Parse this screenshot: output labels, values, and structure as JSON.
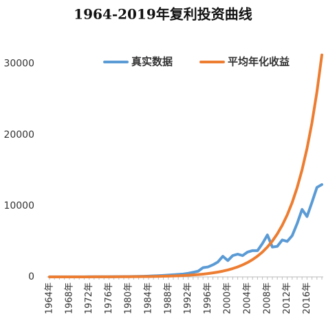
{
  "chart_data": {
    "type": "line",
    "title": "1964-2019年复利投资曲线",
    "categories": [
      "1964年",
      null,
      null,
      null,
      "1968年",
      null,
      null,
      null,
      "1972年",
      null,
      null,
      null,
      "1976年",
      null,
      null,
      null,
      "1980年",
      null,
      null,
      null,
      "1984年",
      null,
      null,
      null,
      "1988年",
      null,
      null,
      null,
      "1992年",
      null,
      null,
      null,
      "1996年",
      null,
      null,
      null,
      "2000年",
      null,
      null,
      null,
      "2004年",
      null,
      null,
      null,
      "2008年",
      null,
      null,
      null,
      "2012年",
      null,
      null,
      null,
      "2016年",
      null,
      null,
      null
    ],
    "series": [
      {
        "name": "真实数据",
        "color": "#5b9bd5",
        "values": [
          10,
          10,
          11,
          12,
          13,
          14,
          15,
          17,
          19,
          21,
          24,
          27,
          30,
          34,
          38,
          43,
          50,
          60,
          70,
          90,
          110,
          140,
          170,
          210,
          250,
          300,
          350,
          400,
          500,
          650,
          800,
          1300,
          1400,
          1700,
          2100,
          2900,
          2300,
          3000,
          3200,
          3000,
          3500,
          3700,
          3700,
          4700,
          5900,
          4200,
          4300,
          5200,
          5000,
          5800,
          7500,
          9500,
          8500,
          10500,
          12600,
          13000
        ]
      },
      {
        "name": "平均年化收益",
        "color": "#ed7d31",
        "values": [
          1,
          2,
          2,
          2,
          3,
          3,
          4,
          5,
          6,
          7,
          9,
          10,
          12,
          15,
          18,
          21,
          26,
          31,
          37,
          44,
          53,
          63,
          76,
          91,
          110,
          132,
          158,
          190,
          227,
          273,
          328,
          393,
          472,
          566,
          679,
          815,
          978,
          1174,
          1409,
          1690,
          2028,
          2434,
          2921,
          3505,
          4206,
          5047,
          6057,
          7268,
          8721,
          10466,
          12559,
          15071,
          18085,
          21702,
          26042,
          31250
        ]
      }
    ],
    "ylim": [
      0,
      32000
    ],
    "yticks": [
      0,
      10000,
      20000,
      30000
    ],
    "grid": false
  }
}
